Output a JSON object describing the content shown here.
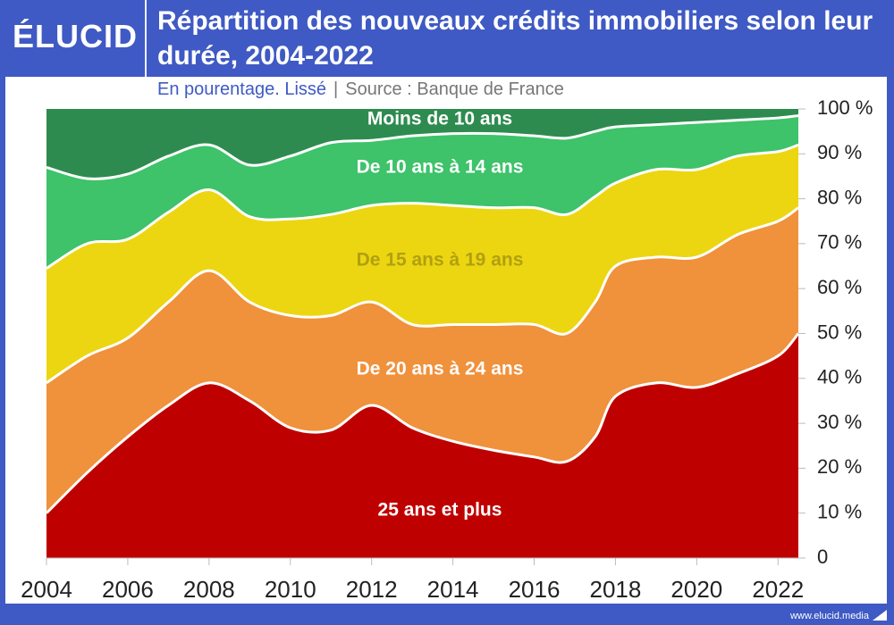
{
  "header": {
    "logo": "ÉLUCID",
    "title": "Répartition des nouveaux crédits immobiliers selon leur durée, 2004-2022",
    "subtitle": "En pourentage. Lissé",
    "separator": "|",
    "source": "Source : Banque de France"
  },
  "footer": {
    "url": "www.elucid.media"
  },
  "colors": {
    "header_bg": "#3f5ac4",
    "series": [
      "#bf0000",
      "#f0913c",
      "#ecd611",
      "#3ec26a",
      "#2e8b4f"
    ]
  },
  "chart_data": {
    "type": "area",
    "stacked": true,
    "title": "Répartition des nouveaux crédits immobiliers selon leur durée, 2004-2022",
    "subtitle": "En pourentage. Lissé | Source : Banque de France",
    "xlabel": "",
    "ylabel": "",
    "xlim": [
      2004,
      2022.5
    ],
    "ylim": [
      0,
      100
    ],
    "x_ticks": [
      2004,
      2006,
      2008,
      2010,
      2012,
      2014,
      2016,
      2018,
      2020,
      2022
    ],
    "x_tick_labels": [
      "2004",
      "2006",
      "2008",
      "2010",
      "2012",
      "2014",
      "2016",
      "2018",
      "2020",
      "2022"
    ],
    "y_ticks": [
      0,
      10,
      20,
      30,
      40,
      50,
      60,
      70,
      80,
      90,
      100
    ],
    "y_tick_labels": [
      "0",
      "10 %",
      "20 %",
      "30 %",
      "40 %",
      "50 %",
      "60 %",
      "70 %",
      "80 %",
      "90 %",
      "100 %"
    ],
    "y_axis_side": "right",
    "grid": false,
    "legend": "inline labels",
    "x": [
      2004,
      2005,
      2006,
      2007,
      2008,
      2009,
      2010,
      2011,
      2012,
      2013,
      2014,
      2015,
      2016,
      2016.8,
      2017.5,
      2018,
      2019,
      2020,
      2021,
      2022,
      2022.5
    ],
    "series": [
      {
        "name": "25 ans et plus",
        "label_color": "#ffffff",
        "values": [
          10,
          19,
          27,
          34,
          39,
          35,
          29,
          28.5,
          34,
          29,
          26,
          24,
          22.5,
          21.5,
          27,
          36,
          39,
          38,
          41,
          45,
          50
        ]
      },
      {
        "name": "De 20 ans à 24 ans",
        "label_color": "#ffffff",
        "values": [
          29,
          26,
          22,
          23,
          25,
          22,
          25,
          25.5,
          23,
          23,
          26,
          28,
          29.5,
          28.5,
          30,
          29,
          28,
          29,
          31,
          30,
          28
        ]
      },
      {
        "name": "De 15 ans à 19 ans",
        "label_color": "#b0a010",
        "values": [
          25.5,
          25,
          22,
          20,
          18,
          19,
          21.5,
          22.5,
          21.5,
          27,
          26.5,
          26,
          26,
          26.5,
          23.5,
          18.5,
          19.5,
          19.5,
          17.5,
          15.5,
          14
        ]
      },
      {
        "name": "De 10 ans à 14 ans",
        "label_color": "#ffffff",
        "values": [
          22.5,
          14.5,
          14.5,
          12.5,
          10,
          11.5,
          14,
          16,
          14.5,
          15,
          16,
          16.5,
          16,
          17,
          14.5,
          12.5,
          10,
          10.5,
          8,
          7.5,
          6.5
        ]
      },
      {
        "name": "Moins de 10 ans",
        "label_color": "#ffffff",
        "values": [
          13,
          15.5,
          14.5,
          10.5,
          8,
          12.5,
          10.5,
          7.5,
          7,
          6,
          5.5,
          5.5,
          6,
          6.5,
          5,
          4,
          3.5,
          3,
          2.5,
          2,
          1.5
        ]
      }
    ]
  }
}
